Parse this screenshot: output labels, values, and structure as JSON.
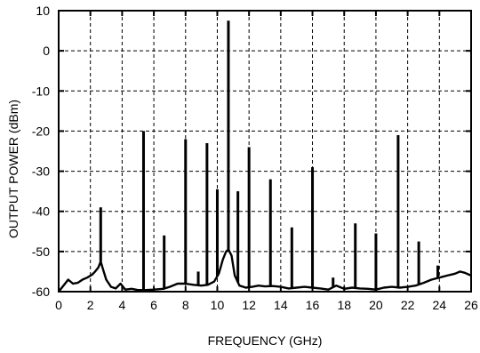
{
  "chart_data": {
    "type": "line",
    "title": "",
    "xlabel": "FREQUENCY (GHz)",
    "ylabel": "OUTPUT POWER (dBm)",
    "xlim": [
      0,
      26
    ],
    "ylim": [
      -60,
      10
    ],
    "grid": true,
    "x_ticks": [
      "0",
      "2",
      "4",
      "6",
      "8",
      "10",
      "12",
      "14",
      "16",
      "18",
      "20",
      "22",
      "24",
      "26"
    ],
    "y_ticks": [
      "10",
      "0",
      "-10",
      "-20",
      "-30",
      "-40",
      "-50",
      "-60"
    ],
    "series": [
      {
        "values": [
          [
            0.0,
            -60.0
          ],
          [
            0.3,
            -58.5
          ],
          [
            0.6,
            -57.0
          ],
          [
            0.9,
            -58.0
          ],
          [
            1.2,
            -57.8
          ],
          [
            1.5,
            -57.0
          ],
          [
            1.8,
            -56.5
          ],
          [
            2.1,
            -55.8
          ],
          [
            2.3,
            -55.0
          ],
          [
            2.5,
            -54.0
          ],
          [
            2.65,
            -52.5
          ],
          [
            2.8,
            -54.5
          ],
          [
            3.0,
            -57.0
          ],
          [
            3.3,
            -58.8
          ],
          [
            3.6,
            -59.2
          ],
          [
            3.9,
            -58.0
          ],
          [
            4.2,
            -59.5
          ],
          [
            4.6,
            -59.3
          ],
          [
            5.0,
            -59.6
          ],
          [
            5.5,
            -59.6
          ],
          [
            6.0,
            -59.5
          ],
          [
            6.6,
            -59.3
          ],
          [
            7.0,
            -58.8
          ],
          [
            7.5,
            -58.0
          ],
          [
            8.0,
            -58.0
          ],
          [
            8.5,
            -58.3
          ],
          [
            9.0,
            -58.5
          ],
          [
            9.4,
            -58.3
          ],
          [
            9.8,
            -57.5
          ],
          [
            10.1,
            -55.5
          ],
          [
            10.35,
            -52.0
          ],
          [
            10.55,
            -50.0
          ],
          [
            10.7,
            -49.5
          ],
          [
            10.9,
            -51.0
          ],
          [
            11.1,
            -56.0
          ],
          [
            11.4,
            -58.5
          ],
          [
            11.8,
            -59.0
          ],
          [
            12.2,
            -58.8
          ],
          [
            12.6,
            -58.5
          ],
          [
            13.0,
            -58.7
          ],
          [
            13.5,
            -58.6
          ],
          [
            14.0,
            -58.8
          ],
          [
            14.5,
            -59.2
          ],
          [
            15.0,
            -59.0
          ],
          [
            15.5,
            -58.8
          ],
          [
            16.0,
            -59.0
          ],
          [
            16.5,
            -59.2
          ],
          [
            17.0,
            -59.5
          ],
          [
            17.5,
            -58.5
          ],
          [
            18.0,
            -59.3
          ],
          [
            18.5,
            -59.0
          ],
          [
            19.0,
            -59.2
          ],
          [
            19.5,
            -59.3
          ],
          [
            20.0,
            -59.5
          ],
          [
            20.5,
            -59.0
          ],
          [
            21.0,
            -58.8
          ],
          [
            21.5,
            -59.0
          ],
          [
            22.0,
            -58.8
          ],
          [
            22.5,
            -58.5
          ],
          [
            23.0,
            -57.8
          ],
          [
            23.5,
            -57.0
          ],
          [
            24.0,
            -56.5
          ],
          [
            24.5,
            -56.0
          ],
          [
            25.0,
            -55.5
          ],
          [
            25.3,
            -55.0
          ],
          [
            25.6,
            -55.3
          ],
          [
            26.0,
            -56.0
          ]
        ]
      }
    ],
    "peaks": [
      [
        2.65,
        -39
      ],
      [
        5.35,
        -20
      ],
      [
        6.65,
        -46
      ],
      [
        8.0,
        -22
      ],
      [
        8.8,
        -55
      ],
      [
        9.35,
        -23
      ],
      [
        10.0,
        -34.5
      ],
      [
        10.7,
        7.5
      ],
      [
        11.3,
        -35
      ],
      [
        12.0,
        -24
      ],
      [
        13.35,
        -32
      ],
      [
        14.7,
        -44
      ],
      [
        16.0,
        -29
      ],
      [
        17.3,
        -56.5
      ],
      [
        18.7,
        -43
      ],
      [
        20.0,
        -45.5
      ],
      [
        21.4,
        -21
      ],
      [
        22.7,
        -47.5
      ],
      [
        23.9,
        -53.5
      ]
    ]
  }
}
